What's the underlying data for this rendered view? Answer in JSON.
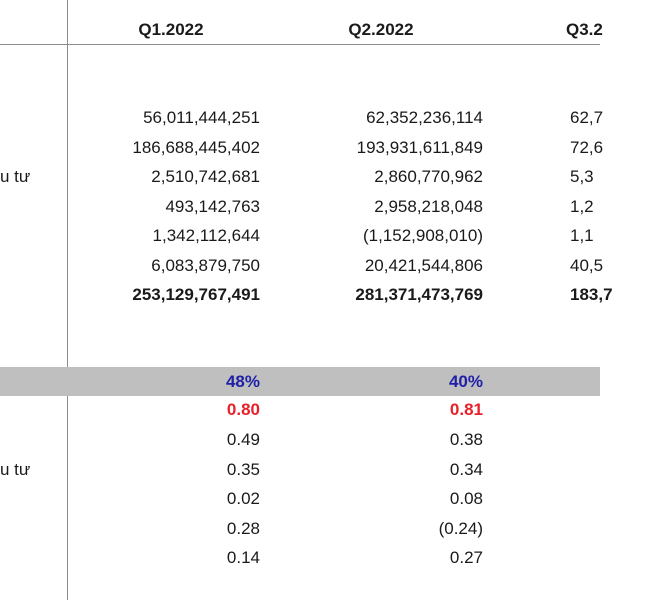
{
  "header": {
    "col1": "Q1.2022",
    "col2": "Q2.2022",
    "col3": "Q3.2"
  },
  "section1": {
    "rows": [
      {
        "label": "",
        "v1": "56,011,444,251",
        "v2": "62,352,236,114",
        "v3": "62,7"
      },
      {
        "label": "",
        "v1": "186,688,445,402",
        "v2": "193,931,611,849",
        "v3": "72,6"
      },
      {
        "label": "u tư",
        "v1": "2,510,742,681",
        "v2": "2,860,770,962",
        "v3": "5,3"
      },
      {
        "label": "",
        "v1": "493,142,763",
        "v2": "2,958,218,048",
        "v3": "1,2"
      },
      {
        "label": "",
        "v1": "1,342,112,644",
        "v2": "(1,152,908,010)",
        "v3": "1,1"
      },
      {
        "label": "",
        "v1": "6,083,879,750",
        "v2": "20,421,544,806",
        "v3": "40,5"
      }
    ],
    "total": {
      "v1": "253,129,767,491",
      "v2": "281,371,473,769",
      "v3": "183,7"
    }
  },
  "section2": {
    "header": {
      "v1": "48%",
      "v2": "40%"
    },
    "rows": [
      {
        "label": "",
        "v1": "0.80",
        "v2": "0.81"
      },
      {
        "label": "",
        "v1": "0.49",
        "v2": "0.38"
      },
      {
        "label": "u tư",
        "v1": "0.35",
        "v2": "0.34"
      },
      {
        "label": "",
        "v1": "0.02",
        "v2": "0.08"
      },
      {
        "label": "",
        "v1": "0.28",
        "v2": "(0.24)"
      },
      {
        "label": "",
        "v1": "0.14",
        "v2": "0.27"
      }
    ]
  },
  "colors": {
    "percent_text": "#1f1fa8",
    "highlight_text": "#e8202a",
    "band_bg": "#bfbfbf",
    "grid_line": "#8c8c8c"
  }
}
